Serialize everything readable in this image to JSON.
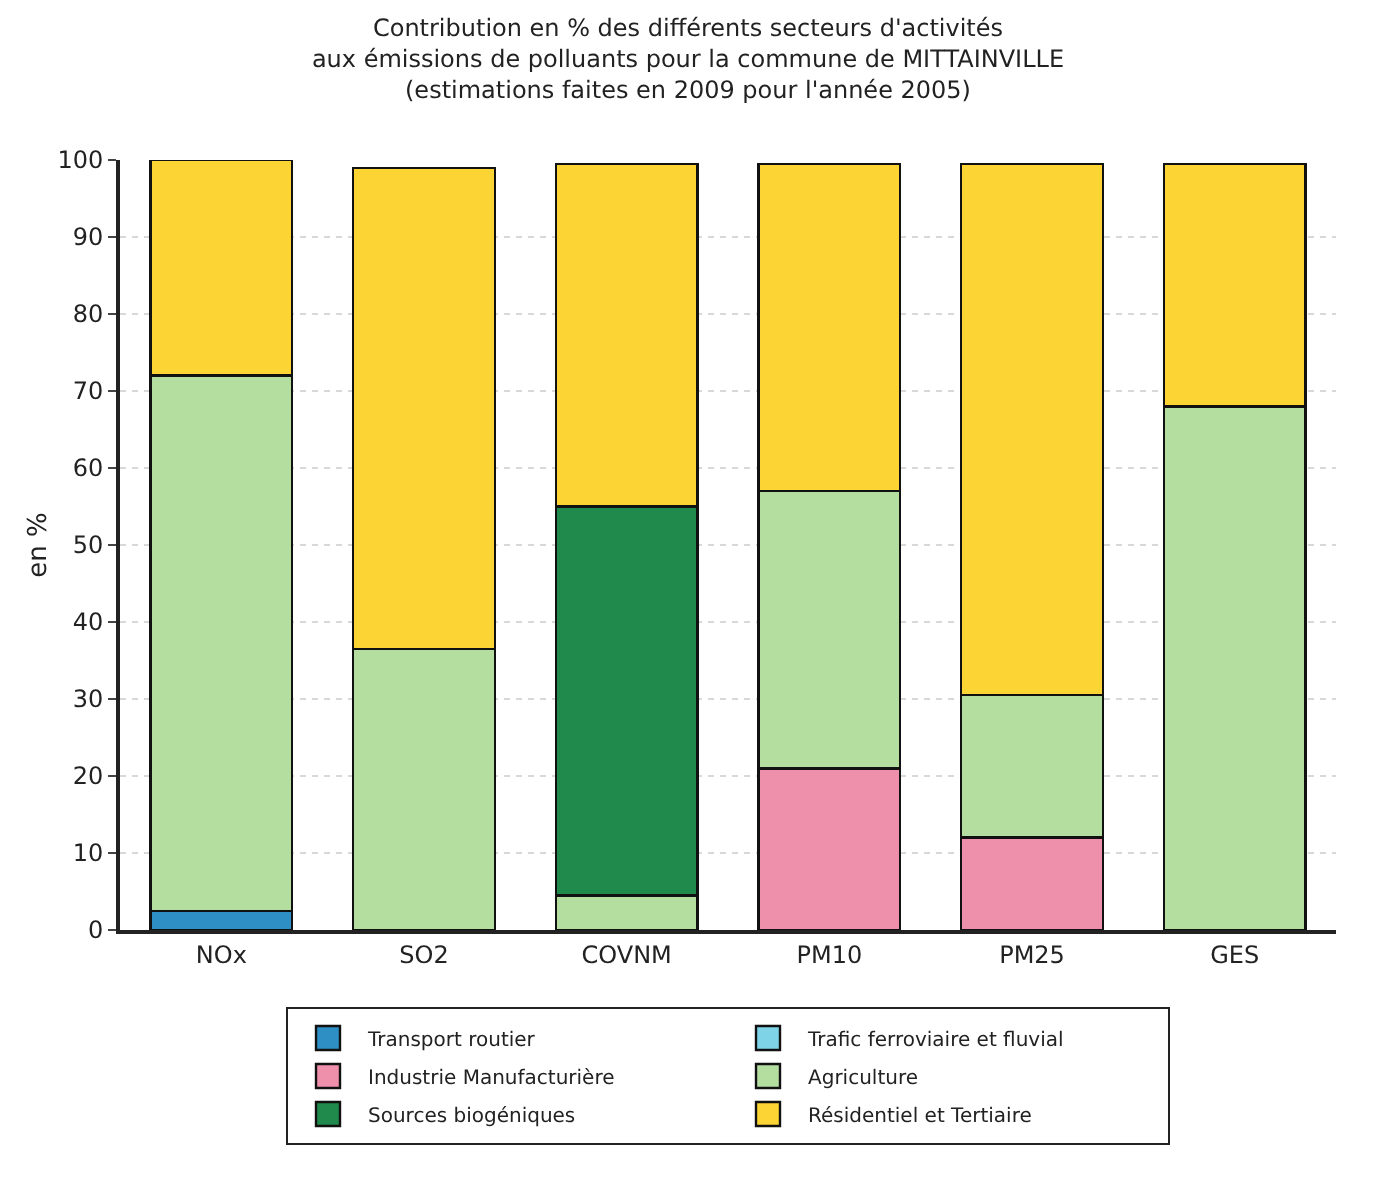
{
  "chart_data": {
    "type": "bar",
    "stacked": true,
    "title": "Contribution en % des différents secteurs d'activités\naux émissions de polluants pour la commune de MITTAINVILLE\n(estimations faites en 2009 pour l'année 2005)",
    "ylabel": "en %",
    "categories": [
      "NOx",
      "SO2",
      "COVNM",
      "PM10",
      "PM25",
      "GES"
    ],
    "series": [
      {
        "name": "Transport routier",
        "color": "#2e8fc4",
        "values": [
          2.5,
          0,
          0,
          0,
          0,
          null
        ]
      },
      {
        "name": "Trafic ferroviaire et fluvial",
        "color": "#7fd3e6",
        "values": [
          0,
          0,
          0,
          0,
          0,
          0
        ]
      },
      {
        "name": "Industrie Manufacturière",
        "color": "#ee8fac",
        "values": [
          0,
          0,
          0,
          21,
          12,
          0
        ]
      },
      {
        "name": "Agriculture",
        "color": "#b3dea0",
        "values": [
          69.5,
          36.5,
          4.5,
          36,
          18.5,
          68
        ]
      },
      {
        "name": "Sources biogéniques",
        "color": "#1f8a4c",
        "values": [
          0,
          0,
          50.5,
          0,
          0,
          0
        ]
      },
      {
        "name": "Résidentiel et Tertiaire",
        "color": "#fcd535",
        "values": [
          28,
          62.5,
          44.5,
          42.5,
          69,
          31.5
        ]
      }
    ],
    "ylim": [
      0,
      100
    ],
    "yticks": [
      0,
      10,
      20,
      30,
      40,
      50,
      60,
      70,
      80,
      90,
      100
    ],
    "grid": "y",
    "legend": "bottom"
  }
}
